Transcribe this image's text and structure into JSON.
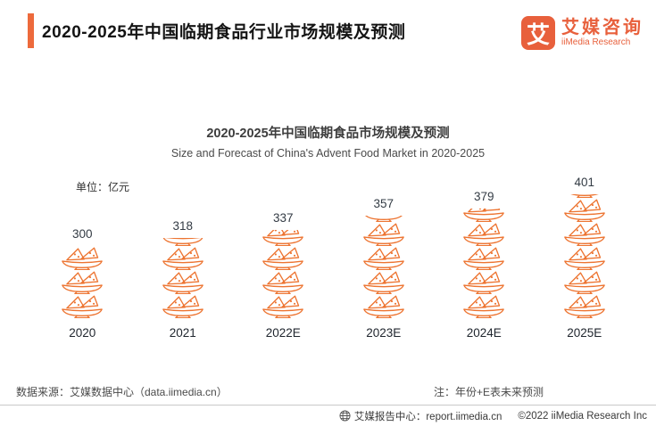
{
  "header": {
    "title": "2020-2025年中国临期食品行业市场规模及预测"
  },
  "logo": {
    "mark": "艾",
    "name_cn": "艾媒咨询",
    "name_en": "iiMedia Research"
  },
  "chart": {
    "title": "2020-2025年中国临期食品市场规模及预测",
    "subtitle": "Size and Forecast of China's Advent Food Market in 2020-2025",
    "unit_label": "单位：亿元"
  },
  "chart_data": {
    "type": "bar",
    "variant": "pictogram",
    "icon": "food-plate-icon",
    "title": "2020-2025年中国临期食品市场规模及预测",
    "subtitle": "Size and Forecast of China's Advent Food Market in 2020-2025",
    "unit": "亿元",
    "categories": [
      "2020",
      "2021",
      "2022E",
      "2023E",
      "2024E",
      "2025E"
    ],
    "values": [
      300,
      318,
      337,
      357,
      379,
      401
    ],
    "icon_units": [
      3.0,
      3.35,
      3.65,
      4.25,
      4.55,
      5.15
    ],
    "value_labels_shown": true,
    "grid": false,
    "legend": false,
    "accent_color": "#ED7431"
  },
  "footer": {
    "source": "数据来源：艾媒数据中心（data.iimedia.cn）",
    "note": "注：年份+E表未来预测",
    "report_center": "艾媒报告中心：report.iimedia.cn",
    "copyright": "©2022  iiMedia Research Inc"
  },
  "colors": {
    "accent": "#ED6A3C",
    "icon_stroke": "#ED7431",
    "logo": "#E8603C",
    "title_text": "#141414",
    "divider": "#c9c9c9"
  }
}
